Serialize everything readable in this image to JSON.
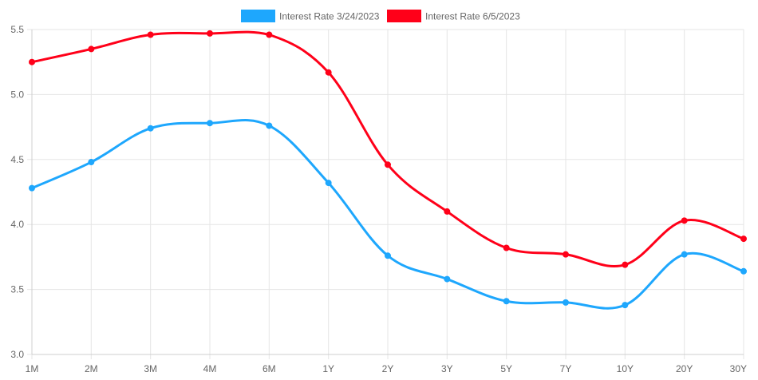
{
  "chart_data": {
    "type": "line",
    "title": "",
    "xlabel": "",
    "ylabel": "",
    "categories": [
      "1M",
      "2M",
      "3M",
      "4M",
      "6M",
      "1Y",
      "2Y",
      "3Y",
      "5Y",
      "7Y",
      "10Y",
      "20Y",
      "30Y"
    ],
    "ylim": [
      3.0,
      5.5
    ],
    "y_ticks": [
      "3.0",
      "3.5",
      "4.0",
      "4.5",
      "5.0",
      "5.5"
    ],
    "grid": true,
    "legend_position": "top-center",
    "series": [
      {
        "name": "Interest Rate 3/24/2023",
        "color": "#1ea7fd",
        "values": [
          4.28,
          4.48,
          4.74,
          4.78,
          4.76,
          4.32,
          3.76,
          3.58,
          3.41,
          3.4,
          3.38,
          3.77,
          3.64
        ]
      },
      {
        "name": "Interest Rate 6/5/2023",
        "color": "#ff0019",
        "values": [
          5.25,
          5.35,
          5.46,
          5.47,
          5.46,
          5.17,
          4.46,
          4.1,
          3.82,
          3.77,
          3.69,
          4.03,
          3.89
        ]
      }
    ]
  }
}
